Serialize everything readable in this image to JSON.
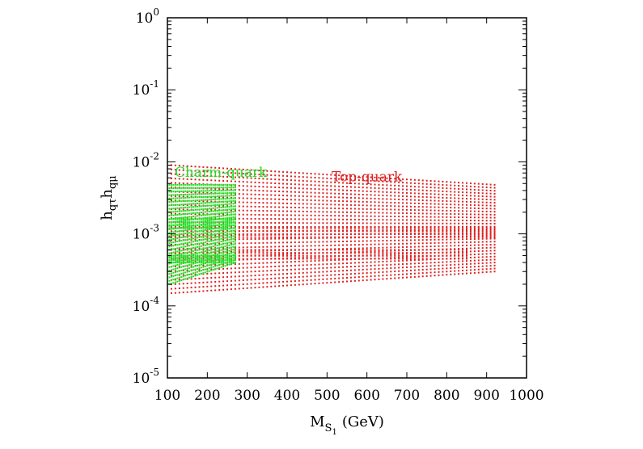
{
  "chart_data": {
    "type": "scatter",
    "title": "",
    "xlabel": {
      "main": "M",
      "sub": "S",
      "subsub": "1",
      "unit": "(GeV)"
    },
    "ylabel": {
      "h1": "h",
      "h1sub": "qτ",
      "h2": "h",
      "h2sub": "qμ"
    },
    "xlim": [
      100,
      1000
    ],
    "ylim": [
      1e-05,
      1
    ],
    "yscale": "log",
    "grid": false,
    "x_ticks": [
      "100",
      "200",
      "300",
      "400",
      "500",
      "600",
      "700",
      "800",
      "900",
      "1000"
    ],
    "y_ticks": [
      {
        "base": "10",
        "exp": "0"
      },
      {
        "base": "10",
        "exp": "-1"
      },
      {
        "base": "10",
        "exp": "-2"
      },
      {
        "base": "10",
        "exp": "-3"
      },
      {
        "base": "10",
        "exp": "-4"
      },
      {
        "base": "10",
        "exp": "-5"
      }
    ],
    "annotations": [
      {
        "text": "Charm-quark",
        "color": "#22dd22"
      },
      {
        "text": "Top-quark",
        "color": "#dd2020"
      }
    ],
    "series": [
      {
        "name": "Top-quark",
        "color": "#dd2020",
        "x_start": 110,
        "x_end": 920,
        "x_step": 10,
        "y_top_left": 0.009,
        "y_top_right": 0.0048,
        "y_bottom_left": 0.00015,
        "y_bottom_right": 0.0003,
        "inner_ranges": [
          {
            "x_from": 110,
            "x_to": 920,
            "y_from": 0.0009,
            "y_to": 0.0012
          },
          {
            "x_from": 110,
            "x_to": 850,
            "y_from": 0.00045,
            "y_to": 0.0006
          }
        ]
      },
      {
        "name": "Charm-quark",
        "color": "#22dd22",
        "x_start": 105,
        "x_end": 270,
        "x_step": 5,
        "y_top": 0.0048,
        "y_bottom_left": 0.0002,
        "y_bottom_right": 0.0004,
        "inner_ranges": [
          {
            "x_from": 105,
            "x_to": 270,
            "y_from": 0.0012,
            "y_to": 0.0016
          },
          {
            "x_from": 105,
            "x_to": 270,
            "y_from": 0.0004,
            "y_to": 0.0005
          }
        ]
      }
    ]
  }
}
